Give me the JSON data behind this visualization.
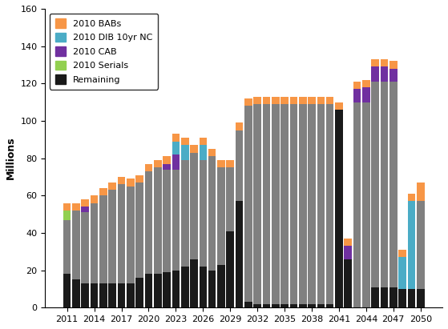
{
  "years": [
    2011,
    2012,
    2013,
    2014,
    2015,
    2016,
    2017,
    2018,
    2019,
    2020,
    2021,
    2022,
    2023,
    2024,
    2025,
    2026,
    2027,
    2028,
    2029,
    2030,
    2031,
    2032,
    2033,
    2034,
    2035,
    2036,
    2037,
    2038,
    2039,
    2040,
    2041,
    2042,
    2043,
    2044,
    2045,
    2046,
    2047,
    2048,
    2049,
    2050
  ],
  "black": [
    18,
    15,
    13,
    13,
    13,
    13,
    13,
    13,
    16,
    18,
    18,
    19,
    20,
    22,
    26,
    22,
    20,
    23,
    41,
    57,
    3,
    2,
    2,
    2,
    2,
    2,
    2,
    2,
    2,
    2,
    106,
    26,
    0,
    0,
    11,
    11,
    11,
    10,
    10,
    10
  ],
  "gray": [
    29,
    37,
    38,
    43,
    47,
    50,
    53,
    52,
    51,
    55,
    57,
    55,
    54,
    57,
    57,
    57,
    61,
    52,
    34,
    38,
    105,
    107,
    107,
    107,
    107,
    107,
    107,
    107,
    107,
    107,
    0,
    0,
    110,
    110,
    110,
    110,
    110,
    0,
    0,
    47
  ],
  "green": [
    5,
    0,
    0,
    0,
    0,
    0,
    0,
    0,
    0,
    0,
    0,
    0,
    0,
    0,
    0,
    0,
    0,
    0,
    0,
    0,
    0,
    0,
    0,
    0,
    0,
    0,
    0,
    0,
    0,
    0,
    0,
    0,
    0,
    0,
    0,
    0,
    0,
    0,
    0,
    0
  ],
  "purple": [
    0,
    0,
    3,
    0,
    0,
    0,
    0,
    0,
    0,
    0,
    0,
    3,
    8,
    0,
    0,
    0,
    0,
    0,
    0,
    0,
    0,
    0,
    0,
    0,
    0,
    0,
    0,
    0,
    0,
    0,
    0,
    7,
    7,
    8,
    8,
    8,
    7,
    0,
    0,
    0
  ],
  "teal": [
    0,
    0,
    0,
    0,
    0,
    0,
    0,
    0,
    0,
    0,
    0,
    0,
    7,
    8,
    0,
    8,
    0,
    0,
    0,
    0,
    0,
    0,
    0,
    0,
    0,
    0,
    0,
    0,
    0,
    0,
    0,
    0,
    0,
    0,
    0,
    0,
    0,
    17,
    47,
    0
  ],
  "orange": [
    4,
    4,
    4,
    4,
    4,
    4,
    4,
    4,
    4,
    4,
    4,
    4,
    4,
    4,
    4,
    4,
    4,
    4,
    4,
    4,
    4,
    4,
    4,
    4,
    4,
    4,
    4,
    4,
    4,
    4,
    4,
    4,
    4,
    4,
    4,
    4,
    4,
    4,
    4,
    10
  ],
  "colors": {
    "black": "#1a1a1a",
    "gray": "#808080",
    "green": "#92d050",
    "purple": "#7030a0",
    "teal": "#4bacc6",
    "orange": "#f79646"
  },
  "ylabel": "Millions",
  "ylim": [
    0,
    160
  ],
  "yticks": [
    0,
    20,
    40,
    60,
    80,
    100,
    120,
    140,
    160
  ],
  "legend": [
    "2010 BABs",
    "2010 DIB 10yr NC",
    "2010 CAB",
    "2010 Serials",
    "Remaining"
  ]
}
